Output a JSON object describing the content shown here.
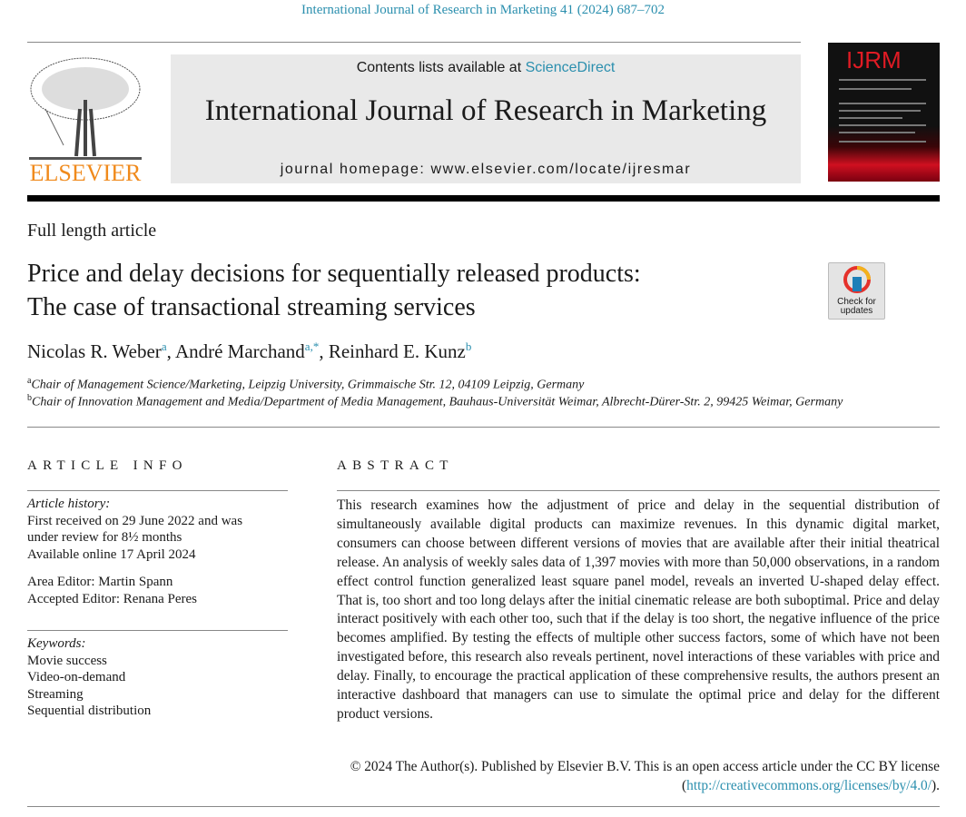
{
  "running_header": "International Journal of Research in Marketing 41 (2024) 687–702",
  "masthead": {
    "publisher_logo_text": "ELSEVIER",
    "contents_prefix": "Contents lists available at ",
    "contents_link": "ScienceDirect",
    "journal_title": "International Journal of Research in Marketing",
    "homepage": "journal homepage: www.elsevier.com/locate/ijresmar",
    "cover_logo_text": "IJRM"
  },
  "article_type": "Full length article",
  "title": {
    "line1": "Price and delay decisions for sequentially released products:",
    "line2": "The case of transactional streaming services"
  },
  "check_updates": {
    "line1": "Check for",
    "line2": "updates"
  },
  "authors": [
    {
      "name": "Nicolas R. Weber",
      "sup": "a"
    },
    {
      "name": "André Marchand",
      "sup": "a,*"
    },
    {
      "name": "Reinhard E. Kunz",
      "sup": "b"
    }
  ],
  "affiliations": [
    {
      "sup": "a",
      "text": "Chair of Management Science/Marketing, Leipzig University, Grimmaische Str. 12, 04109 Leipzig, Germany"
    },
    {
      "sup": "b",
      "text": "Chair of Innovation Management and Media/Department of Media Management, Bauhaus-Universität Weimar, Albrecht-Dürer-Str. 2, 99425 Weimar, Germany"
    }
  ],
  "article_info": {
    "heading": "ARTICLE INFO",
    "history_label": "Article history:",
    "history": [
      "First received on 29 June 2022 and was",
      "under review for 8½ months",
      "Available online 17 April 2024"
    ],
    "editors": [
      "Area Editor: Martin Spann",
      "Accepted Editor: Renana Peres"
    ],
    "keywords_label": "Keywords:",
    "keywords": [
      "Movie success",
      "Video-on-demand",
      "Streaming",
      "Sequential distribution"
    ]
  },
  "abstract": {
    "heading": "ABSTRACT",
    "text": "This research examines how the adjustment of price and delay in the sequential distribution of simultaneously available digital products can maximize revenues. In this dynamic digital market, consumers can choose between different versions of movies that are available after their initial theatrical release. An analysis of weekly sales data of 1,397 movies with more than 50,000 observations, in a random effect control function generalized least square panel model, reveals an inverted U-shaped delay effect. That is, too short and too long delays after the initial cinematic release are both suboptimal. Price and delay interact positively with each other too, such that if the delay is too short, the negative influence of the price becomes amplified. By testing the effects of multiple other success factors, some of which have not been investigated before, this research also reveals pertinent, novel interactions of these variables with price and delay. Finally, to encourage the practical application of these comprehensive results, the authors present an interactive dashboard that managers can use to simulate the optimal price and delay for the different product versions.",
    "copyright": "© 2024 The Author(s). Published by Elsevier B.V. This is an open access article under the CC BY license (",
    "license_link": "http://creativecommons.org/licenses/by/4.0/",
    "copyright_end": ")."
  },
  "colors": {
    "link": "#2b8fae",
    "elsevier_orange": "#f08a1c",
    "masthead_gray": "#e9e9e9"
  }
}
